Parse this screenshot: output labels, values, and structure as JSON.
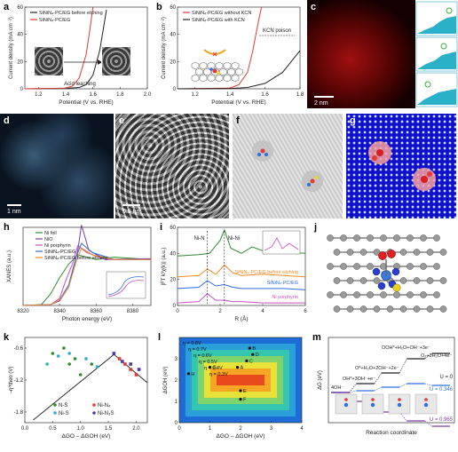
{
  "panel_labels": {
    "a": "a",
    "b": "b",
    "c": "c",
    "d": "d",
    "e": "e",
    "f": "f",
    "g": "g",
    "h": "h",
    "i": "i",
    "j": "j",
    "k": "k",
    "l": "l",
    "m": "m"
  },
  "colors": {
    "black": "#222222",
    "red": "#e53935",
    "blue": "#2f6de0",
    "green": "#2e8b2e",
    "purple": "#7b3fa0",
    "orange": "#f08a24",
    "magenta": "#c850c0"
  },
  "chart_data": [
    {
      "id": "a",
      "type": "line",
      "xlabel": "Potential (V vs. RHE)",
      "ylabel": "Current density (mA cm⁻²)",
      "xlim": [
        1.1,
        2.0
      ],
      "ylim": [
        0,
        60
      ],
      "xticks": [
        "1.2",
        "1.4",
        "1.6",
        "1.8",
        "2.0"
      ],
      "yticks": [
        "0",
        "20",
        "40",
        "60"
      ],
      "series": [
        {
          "name": "SiNiN₄-PC/EG before etching",
          "color": "#222222",
          "x": [
            1.1,
            1.4,
            1.5,
            1.55,
            1.6,
            1.65,
            1.7
          ],
          "y": [
            0,
            0.3,
            1,
            3,
            10,
            28,
            58
          ]
        },
        {
          "name": "SiNiN₄-PC/EG",
          "color": "#e53935",
          "x": [
            1.1,
            1.4,
            1.45,
            1.5,
            1.55,
            1.58,
            1.6
          ],
          "y": [
            0,
            0.5,
            2,
            8,
            25,
            45,
            60
          ]
        }
      ],
      "annotations": [
        "Acid leaching"
      ],
      "inset_scale": [
        "50 nm",
        "50 nm"
      ]
    },
    {
      "id": "b",
      "type": "line",
      "xlabel": "Potential (V vs. RHE)",
      "ylabel": "Current density (mA cm⁻²)",
      "xlim": [
        1.1,
        1.8
      ],
      "ylim": [
        0,
        60
      ],
      "xticks": [
        "1.2",
        "1.4",
        "1.6",
        "1.8"
      ],
      "yticks": [
        "0",
        "20",
        "40",
        "60"
      ],
      "series": [
        {
          "name": "SiNiN₄-PC/EG without KCN",
          "color": "#e53935",
          "x": [
            1.1,
            1.4,
            1.45,
            1.5,
            1.53,
            1.56,
            1.58
          ],
          "y": [
            0,
            0.5,
            3,
            12,
            28,
            48,
            60
          ]
        },
        {
          "name": "SiNiN₄-PC/EG with KCN",
          "color": "#222222",
          "x": [
            1.1,
            1.4,
            1.5,
            1.6,
            1.7,
            1.75,
            1.8
          ],
          "y": [
            0,
            0.2,
            1,
            4,
            12,
            20,
            28
          ]
        }
      ],
      "annotations": [
        "KCN poison"
      ]
    },
    {
      "id": "h",
      "type": "line",
      "xlabel": "Photon energy (eV)",
      "ylabel": "XANES (a.u.)",
      "xlim": [
        8320,
        8390
      ],
      "ylim": [
        0,
        1.7
      ],
      "xticks": [
        "8320",
        "8340",
        "8360",
        "8380"
      ],
      "series": [
        {
          "name": "Ni foil",
          "color": "#2e8b2e",
          "x": [
            8320,
            8330,
            8335,
            8340,
            8345,
            8350,
            8360,
            8370,
            8390
          ],
          "y": [
            0,
            0.02,
            0.25,
            0.6,
            0.9,
            1.1,
            1.0,
            1.05,
            1.0
          ]
        },
        {
          "name": "NiO",
          "color": "#7b3fa0",
          "x": [
            8320,
            8335,
            8340,
            8345,
            8350,
            8352,
            8356,
            8365,
            8390
          ],
          "y": [
            0,
            0.02,
            0.1,
            0.4,
            1.2,
            1.75,
            1.2,
            1.0,
            1.02
          ]
        },
        {
          "name": "Ni porphyrin",
          "color": "#c850c0",
          "x": [
            8320,
            8335,
            8340,
            8343,
            8347,
            8350,
            8355,
            8365,
            8390
          ],
          "y": [
            0,
            0.02,
            0.15,
            0.5,
            0.9,
            1.3,
            1.15,
            1.0,
            1.0
          ]
        },
        {
          "name": "SiNiN₄-PC/EG",
          "color": "#2f6de0",
          "x": [
            8320,
            8335,
            8340,
            8345,
            8349,
            8352,
            8358,
            8370,
            8390
          ],
          "y": [
            0,
            0.02,
            0.12,
            0.45,
            1.05,
            1.35,
            1.15,
            1.0,
            1.0
          ]
        },
        {
          "name": "SiNiN₄-PC/EG before etching",
          "color": "#f08a24",
          "x": [
            8320,
            8335,
            8340,
            8345,
            8349,
            8352,
            8358,
            8370,
            8390
          ],
          "y": [
            0,
            0.02,
            0.12,
            0.4,
            0.95,
            1.25,
            1.1,
            1.0,
            1.0
          ]
        }
      ]
    },
    {
      "id": "i",
      "type": "line",
      "xlabel": "R (Å)",
      "ylabel": "|FT k³χ(k)| (a.u.)",
      "xlim": [
        0,
        6
      ],
      "ylim": [
        0,
        60
      ],
      "xticks": [
        "0",
        "2",
        "4",
        "6"
      ],
      "yticks": [
        "0",
        "20",
        "40",
        "60"
      ],
      "series": [
        {
          "name": "Ni foil",
          "color": "#2e8b2e",
          "x": [
            0,
            1,
            1.5,
            2,
            2.2,
            2.5,
            3,
            3.5,
            4,
            4.5,
            5,
            6
          ],
          "y": [
            38,
            39,
            40,
            50,
            58,
            44,
            40,
            45,
            42,
            44,
            41,
            40
          ]
        },
        {
          "name": "SiNiN₄-PC/EG before etching",
          "color": "#f08a24",
          "x": [
            0,
            1,
            1.4,
            1.8,
            2.2,
            2.6,
            3,
            4,
            5,
            6
          ],
          "y": [
            22,
            23,
            28,
            24,
            31,
            25,
            23,
            24,
            23,
            22
          ]
        },
        {
          "name": "SiNiN₄-PC/EG",
          "color": "#2f6de0",
          "x": [
            0,
            1,
            1.4,
            1.8,
            2.2,
            2.6,
            3,
            4,
            5,
            6
          ],
          "y": [
            13,
            14,
            19,
            15,
            16,
            14,
            13,
            13,
            13,
            12
          ]
        },
        {
          "name": "Ni porphyrin",
          "color": "#c850c0",
          "x": [
            0,
            1,
            1.4,
            1.8,
            2.2,
            2.6,
            3,
            4,
            5,
            6
          ],
          "y": [
            2,
            3,
            9,
            4,
            4,
            3,
            3,
            2,
            2,
            2
          ]
        }
      ],
      "annotations": [
        "Ni-N",
        "Ni-Ni"
      ]
    },
    {
      "id": "k",
      "type": "scatter",
      "xlabel": "ΔGO – ΔGOH (eV)",
      "ylabel": "–η^theo (V)",
      "xlim": [
        0,
        2.2
      ],
      "ylim": [
        -2.0,
        -0.4
      ],
      "xticks": [
        "0.0",
        "0.5",
        "1.0",
        "1.5",
        "2.0"
      ],
      "yticks": [
        "-0.6",
        "-1.2",
        "-1.8"
      ],
      "series": [
        {
          "name": "N-S",
          "color": "#2e8b2e",
          "x": [
            0.5,
            0.7,
            0.8,
            0.9,
            1.0,
            1.2
          ],
          "y": [
            -0.7,
            -0.6,
            -0.9,
            -0.8,
            -1.1,
            -0.9
          ]
        },
        {
          "name": "Ni-N₄",
          "color": "#e53935",
          "x": [
            1.7,
            1.8,
            1.9,
            2.0
          ],
          "y": [
            -0.8,
            -0.9,
            -1.0,
            -1.1
          ]
        },
        {
          "name": "Ni-S",
          "color": "#2ab0c8",
          "x": [
            0.4,
            0.6,
            0.8,
            1.1,
            1.3
          ],
          "y": [
            -0.9,
            -0.75,
            -0.7,
            -0.8,
            -0.95
          ]
        },
        {
          "name": "Ni-N₃S",
          "color": "#4a3aa0",
          "x": [
            1.6,
            1.75,
            1.9,
            2.05
          ],
          "y": [
            -0.7,
            -0.85,
            -0.9,
            -1.0
          ]
        }
      ]
    },
    {
      "id": "l",
      "type": "heatmap",
      "xlabel": "ΔGO – ΔGOH (eV)",
      "ylabel": "ΔGOH (eV)",
      "xlim": [
        0,
        4
      ],
      "ylim": [
        0,
        4
      ],
      "xticks": [
        "0",
        "1",
        "2",
        "3",
        "4"
      ],
      "yticks": [
        "0",
        "1",
        "2",
        "3"
      ],
      "contour_labels": [
        "η = 0.8V",
        "η = 0.7V",
        "η = 0.6V",
        "η = 0.5V",
        "η = 0.4V",
        "η = 0.3V"
      ],
      "points": [
        "B",
        "C",
        "D",
        "E",
        "F",
        "G",
        "H",
        "A"
      ]
    },
    {
      "id": "m",
      "type": "line",
      "xlabel": "Reaction coordinate",
      "ylabel": "ΔG (eV)",
      "steps": [
        "4OH⁻",
        "OH*+3OH⁻+e⁻",
        "O*+H₂O+2OH⁻+2e⁻",
        "OOH*+H₂O+OH⁻+3e⁻",
        "O₂+2H₂O+4e⁻"
      ],
      "potentials": [
        "U = 0",
        "U = 0.346",
        "U = 0.965"
      ]
    }
  ]
}
